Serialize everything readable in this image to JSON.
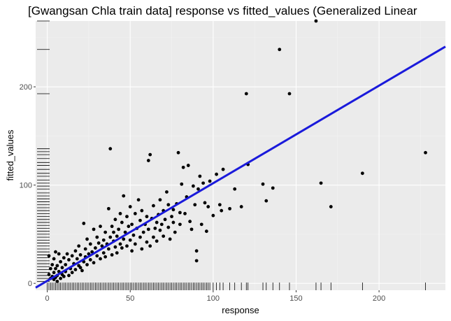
{
  "chart_data": {
    "type": "scatter",
    "title": "[Gwangsan Chla train data] response vs fitted_values (Generalized Linear",
    "xlabel": "response",
    "ylabel": "fitted_values",
    "xlim": [
      -7,
      240
    ],
    "ylim": [
      -7,
      267
    ],
    "x_ticks": [
      0,
      50,
      100,
      150,
      200
    ],
    "y_ticks": [
      0,
      100,
      200
    ],
    "grid": true,
    "rug": true,
    "fit_line": {
      "intercept": 2.6,
      "slope": 0.993,
      "color": "#1a1adb"
    },
    "colors": {
      "panel": "#ebebeb",
      "grid_major": "#ffffff",
      "grid_minor": "#f3f3f3",
      "point": "#000000",
      "rug": "#000000",
      "tick_label": "#4d4d4d"
    },
    "points": [
      [
        1,
        9
      ],
      [
        1,
        28
      ],
      [
        2,
        5
      ],
      [
        2,
        15
      ],
      [
        3,
        7
      ],
      [
        3,
        19
      ],
      [
        4,
        4
      ],
      [
        4,
        11
      ],
      [
        4,
        25
      ],
      [
        5,
        6
      ],
      [
        5,
        15
      ],
      [
        5,
        32
      ],
      [
        6,
        2
      ],
      [
        6,
        8
      ],
      [
        6,
        18
      ],
      [
        7,
        12
      ],
      [
        7,
        30
      ],
      [
        8,
        5
      ],
      [
        8,
        22
      ],
      [
        9,
        9
      ],
      [
        9,
        16
      ],
      [
        10,
        7
      ],
      [
        10,
        26
      ],
      [
        11,
        12
      ],
      [
        11,
        19
      ],
      [
        12,
        30
      ],
      [
        13,
        8
      ],
      [
        13,
        24
      ],
      [
        14,
        15
      ],
      [
        15,
        11
      ],
      [
        15,
        28
      ],
      [
        16,
        20
      ],
      [
        17,
        14
      ],
      [
        17,
        33
      ],
      [
        18,
        25
      ],
      [
        19,
        18
      ],
      [
        19,
        38
      ],
      [
        20,
        16
      ],
      [
        20,
        29
      ],
      [
        21,
        13
      ],
      [
        22,
        22
      ],
      [
        22,
        61
      ],
      [
        23,
        27
      ],
      [
        23,
        35
      ],
      [
        24,
        19
      ],
      [
        24,
        45
      ],
      [
        25,
        30
      ],
      [
        26,
        24
      ],
      [
        26,
        40
      ],
      [
        27,
        32
      ],
      [
        28,
        21
      ],
      [
        28,
        55
      ],
      [
        29,
        36
      ],
      [
        30,
        28
      ],
      [
        30,
        47
      ],
      [
        31,
        41
      ],
      [
        32,
        25
      ],
      [
        32,
        58
      ],
      [
        33,
        38
      ],
      [
        34,
        31
      ],
      [
        34,
        44
      ],
      [
        35,
        27
      ],
      [
        35,
        52
      ],
      [
        36,
        40
      ],
      [
        37,
        35
      ],
      [
        37,
        76
      ],
      [
        38,
        47
      ],
      [
        38,
        137
      ],
      [
        39,
        29
      ],
      [
        39,
        58
      ],
      [
        40,
        43
      ],
      [
        40,
        52
      ],
      [
        41,
        37
      ],
      [
        41,
        65
      ],
      [
        42,
        48
      ],
      [
        42,
        31
      ],
      [
        43,
        55
      ],
      [
        44,
        40
      ],
      [
        44,
        71
      ],
      [
        45,
        62
      ],
      [
        45,
        36
      ],
      [
        46,
        45
      ],
      [
        46,
        89
      ],
      [
        47,
        52
      ],
      [
        48,
        38
      ],
      [
        48,
        68
      ],
      [
        49,
        58
      ],
      [
        50,
        44
      ],
      [
        50,
        78
      ],
      [
        51,
        33
      ],
      [
        51,
        60
      ],
      [
        52,
        49
      ],
      [
        53,
        71
      ],
      [
        53,
        40
      ],
      [
        54,
        56
      ],
      [
        55,
        85
      ],
      [
        56,
        47
      ],
      [
        56,
        64
      ],
      [
        57,
        35
      ],
      [
        57,
        74
      ],
      [
        58,
        52
      ],
      [
        59,
        60
      ],
      [
        60,
        42
      ],
      [
        60,
        68
      ],
      [
        61,
        125
      ],
      [
        61,
        55
      ],
      [
        62,
        131
      ],
      [
        62,
        38
      ],
      [
        63,
        66
      ],
      [
        64,
        47
      ],
      [
        64,
        79
      ],
      [
        65,
        56
      ],
      [
        66,
        62
      ],
      [
        66,
        43
      ],
      [
        67,
        70
      ],
      [
        68,
        54
      ],
      [
        68,
        85
      ],
      [
        69,
        60
      ],
      [
        70,
        48
      ],
      [
        70,
        74
      ],
      [
        71,
        65
      ],
      [
        72,
        93
      ],
      [
        73,
        57
      ],
      [
        73,
        80
      ],
      [
        74,
        45
      ],
      [
        75,
        68
      ],
      [
        76,
        75
      ],
      [
        76,
        62
      ],
      [
        77,
        52
      ],
      [
        78,
        81
      ],
      [
        79,
        133
      ],
      [
        80,
        60
      ],
      [
        80,
        72
      ],
      [
        81,
        101
      ],
      [
        82,
        118
      ],
      [
        83,
        71
      ],
      [
        84,
        88
      ],
      [
        85,
        120
      ],
      [
        86,
        63
      ],
      [
        87,
        55
      ],
      [
        88,
        99
      ],
      [
        89,
        80
      ],
      [
        90,
        23
      ],
      [
        90,
        33
      ],
      [
        91,
        96
      ],
      [
        92,
        109
      ],
      [
        93,
        60
      ],
      [
        94,
        102
      ],
      [
        95,
        82
      ],
      [
        96,
        53
      ],
      [
        97,
        78
      ],
      [
        98,
        104
      ],
      [
        100,
        69
      ],
      [
        102,
        111
      ],
      [
        104,
        80
      ],
      [
        105,
        74
      ],
      [
        106,
        116
      ],
      [
        110,
        76
      ],
      [
        113,
        96
      ],
      [
        117,
        78
      ],
      [
        120,
        193
      ],
      [
        121,
        121
      ],
      [
        130,
        101
      ],
      [
        132,
        84
      ],
      [
        136,
        97
      ],
      [
        140,
        238
      ],
      [
        146,
        193
      ],
      [
        162,
        267
      ],
      [
        165,
        102
      ],
      [
        171,
        78
      ],
      [
        190,
        112
      ],
      [
        228,
        133
      ]
    ],
    "rug_x": [
      0,
      1,
      2,
      3,
      4,
      5,
      6,
      7,
      8,
      9,
      10,
      11,
      12,
      13,
      14,
      15,
      16,
      17,
      18,
      19,
      20,
      21,
      22,
      23,
      24,
      25,
      26,
      27,
      28,
      29,
      30,
      31,
      32,
      33,
      34,
      35,
      36,
      37,
      38,
      39,
      40,
      41,
      42,
      43,
      44,
      45,
      46,
      47,
      48,
      49,
      50,
      51,
      52,
      53,
      54,
      55,
      56,
      57,
      58,
      59,
      60,
      61,
      62,
      63,
      64,
      65,
      66,
      67,
      68,
      69,
      70,
      71,
      72,
      73,
      74,
      75,
      76,
      77,
      78,
      79,
      80,
      81,
      82,
      83,
      84,
      85,
      86,
      87,
      88,
      89,
      90,
      91,
      92,
      93,
      94,
      95,
      96,
      97,
      98,
      100,
      102,
      104,
      106,
      110,
      113,
      117,
      120,
      121,
      130,
      132,
      136,
      140,
      146,
      162,
      165,
      171,
      190,
      228
    ],
    "rug_y": [
      2,
      5,
      8,
      11,
      14,
      17,
      20,
      23,
      26,
      29,
      32,
      35,
      38,
      41,
      44,
      47,
      50,
      53,
      56,
      59,
      62,
      65,
      68,
      71,
      74,
      77,
      80,
      83,
      86,
      89,
      92,
      96,
      99,
      102,
      105,
      109,
      112,
      116,
      120,
      123,
      127,
      131,
      134,
      137,
      193,
      238,
      267
    ]
  }
}
